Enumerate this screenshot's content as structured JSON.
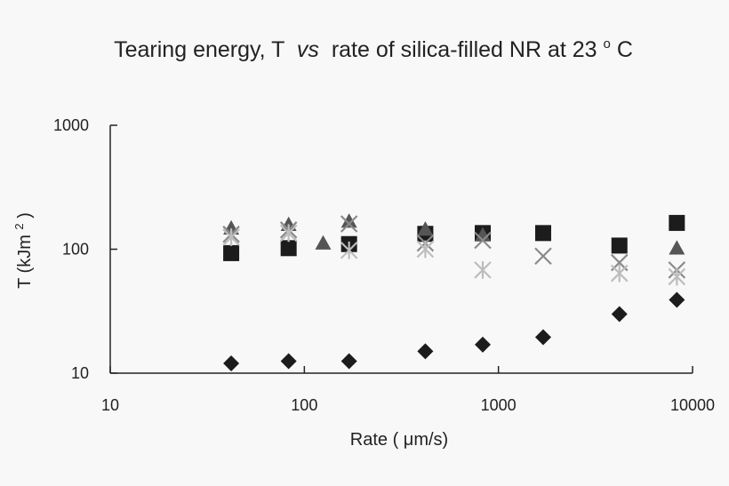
{
  "chart_data": {
    "type": "scatter",
    "title": {
      "main": "Tearing energy, T",
      "italic": "vs",
      "rest": "rate of silica-filled NR at 23",
      "superscript": "o",
      "unit": "C"
    },
    "xlabel": "Rate ( μm/s)",
    "ylabel": {
      "main": "T (kJm",
      "superscript": "2",
      "close": ")"
    },
    "x_scale": "log",
    "y_scale": "log",
    "xlim": [
      10,
      10000
    ],
    "ylim": [
      10,
      1000
    ],
    "x_ticks": [
      "10",
      "100",
      "1000",
      "10000"
    ],
    "y_ticks": [
      "10",
      "100",
      "1000"
    ],
    "grid": false,
    "legend": "none",
    "series": [
      {
        "marker": "diamond",
        "color": "#1c1c1c",
        "points": [
          [
            42,
            12
          ],
          [
            83,
            12.5
          ],
          [
            170,
            12.5
          ],
          [
            420,
            15
          ],
          [
            830,
            17
          ],
          [
            1700,
            19.5
          ],
          [
            4200,
            30
          ],
          [
            8300,
            39
          ]
        ]
      },
      {
        "marker": "square",
        "color": "#1c1c1c",
        "points": [
          [
            42,
            93
          ],
          [
            83,
            102
          ],
          [
            170,
            110
          ],
          [
            420,
            133
          ],
          [
            830,
            135
          ],
          [
            1700,
            135
          ],
          [
            4200,
            107
          ],
          [
            8300,
            163
          ]
        ]
      },
      {
        "marker": "triangle",
        "color": "#555555",
        "points": [
          [
            42,
            148
          ],
          [
            83,
            158
          ],
          [
            125,
            112
          ],
          [
            170,
            168
          ],
          [
            420,
            145
          ],
          [
            830,
            130
          ],
          [
            8300,
            102
          ]
        ]
      },
      {
        "marker": "x",
        "color": "#8a8a8a",
        "points": [
          [
            42,
            132
          ],
          [
            83,
            143
          ],
          [
            170,
            160
          ],
          [
            420,
            112
          ],
          [
            830,
            118
          ],
          [
            1700,
            88
          ],
          [
            4200,
            78
          ],
          [
            8300,
            68
          ]
        ]
      },
      {
        "marker": "star",
        "color": "#bdbdbd",
        "points": [
          [
            42,
            125
          ],
          [
            83,
            135
          ],
          [
            170,
            98
          ],
          [
            420,
            100
          ],
          [
            830,
            68
          ],
          [
            4200,
            64
          ],
          [
            8300,
            60
          ]
        ]
      }
    ]
  }
}
